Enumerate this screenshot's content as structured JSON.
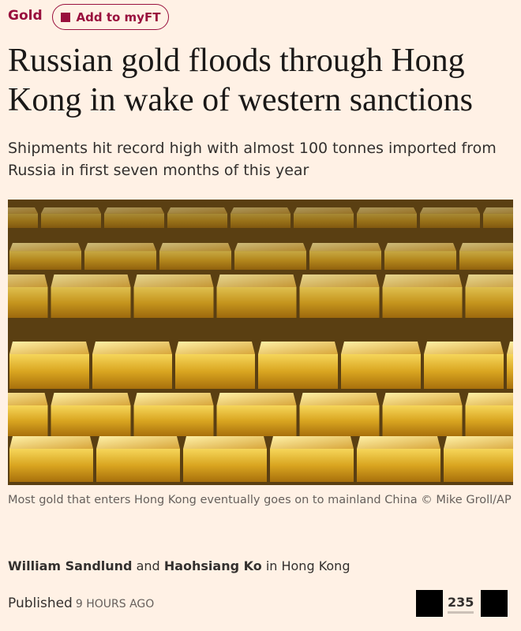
{
  "header": {
    "section": "Gold",
    "button": "Add to myFT"
  },
  "article": {
    "headline": "Russian gold floods through Hong Kong in wake of western sanctions",
    "standfirst": "Shipments hit record high with almost 100 tonnes imported from Russia in first seven months of this year",
    "image_caption": "Most gold that enters Hong Kong eventually goes on to mainland China © Mike Groll/AP",
    "byline": {
      "authors": [
        "William Sandlund",
        "Haohsiang Ko"
      ],
      "joiner": "and",
      "location": "in Hong Kong"
    },
    "published_label": "Published",
    "published_time": "9 HOURS AGO",
    "comments": 235
  }
}
